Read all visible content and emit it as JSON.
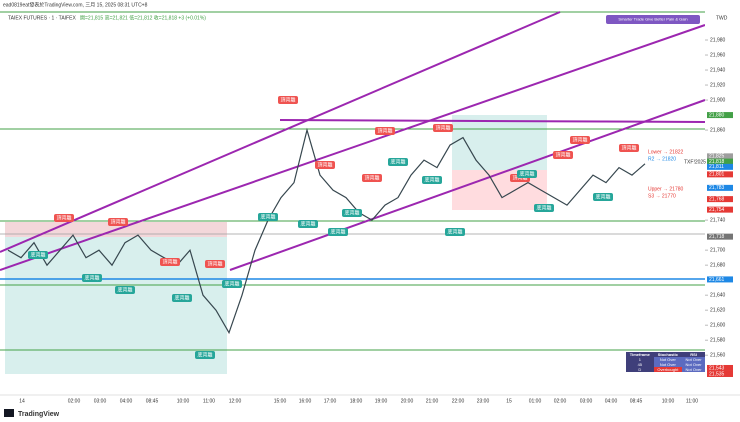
{
  "header": {
    "publisher": "ead0819eat發表於TradingView.com, 三月 15, 2025 08:31 UTC+8",
    "symbol": "TAIEX FUTURES · 1 · TAIFEX",
    "ohlc": "開=21,815 高=21,821 低=21,812 收=21,818 +3 (+0.01%)",
    "currency": "TWD",
    "indicator": "Smarter Trade Give Better Pain & Gain"
  },
  "chart": {
    "ylim": [
      21507,
      22020
    ],
    "yticks": [
      {
        "value": 21980,
        "label": "21,980"
      },
      {
        "value": 21960,
        "label": "21,960"
      },
      {
        "value": 21940,
        "label": "21,940"
      },
      {
        "value": 21920,
        "label": "21,920"
      },
      {
        "value": 21900,
        "label": "21,900"
      },
      {
        "value": 21860,
        "label": "21,860"
      },
      {
        "value": 21740,
        "label": "21,740"
      },
      {
        "value": 21700,
        "label": "21,700"
      },
      {
        "value": 21680,
        "label": "21,680"
      },
      {
        "value": 21640,
        "label": "21,640"
      },
      {
        "value": 21620,
        "label": "21,620"
      },
      {
        "value": 21600,
        "label": "21,600"
      },
      {
        "value": 21580,
        "label": "21,580"
      },
      {
        "value": 21560,
        "label": "21,560"
      }
    ],
    "price_tags": [
      {
        "value": 21880,
        "label": "21,880",
        "color": "#43a047"
      },
      {
        "value": 21825,
        "label": "21,825",
        "color": "#9e9e9e"
      },
      {
        "value": 21818,
        "label": "21,818",
        "color": "#43a047"
      },
      {
        "value": 21811,
        "label": "21,811",
        "color": "#1e88e5"
      },
      {
        "value": 21801,
        "label": "21,801",
        "color": "#e53935"
      },
      {
        "value": 21783,
        "label": "21,783",
        "color": "#1e88e5"
      },
      {
        "value": 21768,
        "label": "21,768",
        "color": "#e53935"
      },
      {
        "value": 21754,
        "label": "21,754",
        "color": "#e53935"
      },
      {
        "value": 21718,
        "label": "21,718",
        "color": "#757575"
      },
      {
        "value": 21661,
        "label": "21,661",
        "color": "#1e88e5"
      },
      {
        "value": 21543,
        "label": "21,543",
        "color": "#e53935"
      },
      {
        "value": 21535,
        "label": "21,535",
        "color": "#e53935"
      }
    ],
    "times": [
      "14",
      "02:00",
      "03:00",
      "04:00",
      "08:45",
      "10:00",
      "11:00",
      "12:00",
      "15:00",
      "16:00",
      "17:00",
      "18:00",
      "19:00",
      "20:00",
      "21:00",
      "22:00",
      "23:00",
      "15",
      "01:00",
      "02:00",
      "03:00",
      "04:00",
      "08:45",
      "10:00",
      "11:00"
    ],
    "price": [
      21700,
      21690,
      21710,
      21680,
      21700,
      21720,
      21690,
      21700,
      21680,
      21710,
      21720,
      21700,
      21690,
      21680,
      21700,
      21640,
      21620,
      21590,
      21640,
      21700,
      21740,
      21770,
      21790,
      21860,
      21800,
      21780,
      21770,
      21750,
      21740,
      21760,
      21770,
      21800,
      21820,
      21810,
      21840,
      21850,
      21820,
      21800,
      21770,
      21780,
      21790,
      21780,
      21770,
      21760,
      21780,
      21800,
      21790,
      21810,
      21800,
      21815
    ],
    "pivots": [
      "Lower → 21822",
      "R2 → 21820",
      "Upper → 21780",
      "S3 → 21770"
    ],
    "contract": "TXF!2025",
    "signals": {
      "top": "頂背離",
      "bottom": "底背離"
    }
  },
  "table": {
    "header": [
      "Timeframe",
      "Stochastic",
      "RSI"
    ],
    "rows": [
      [
        "1",
        "Not Over",
        "Not Over"
      ],
      [
        "45",
        "Not Over",
        "Not Over"
      ],
      [
        "D",
        "Overbought",
        "Not Over"
      ]
    ]
  },
  "footer": {
    "brand": "TradingView"
  }
}
